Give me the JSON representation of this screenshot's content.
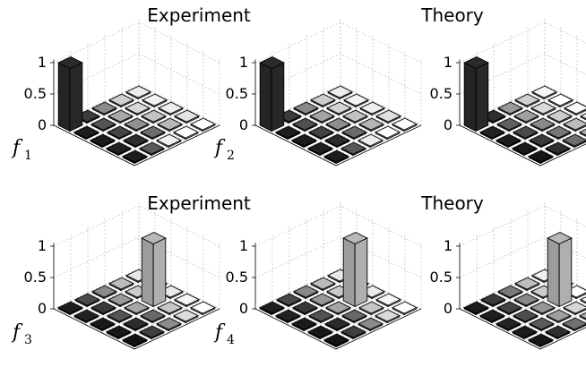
{
  "figure": {
    "titles": [
      "Experiment",
      "Theory",
      "Experiment",
      "Theory"
    ],
    "row_labels": [
      {
        "letter": "f",
        "sub": "1"
      },
      {
        "letter": "f",
        "sub": "2"
      },
      {
        "letter": "f",
        "sub": "3"
      },
      {
        "letter": "f",
        "sub": "4"
      }
    ],
    "z_ticks": [
      "1",
      "0.5",
      "0"
    ]
  },
  "chart_data": [
    {
      "type": "bar3d",
      "title": "Experiment",
      "label": "f1",
      "zlim": [
        0,
        1
      ],
      "grid": true,
      "bars": [
        [
          1.0,
          0.02,
          0.02,
          0.02,
          0.02
        ],
        [
          0.02,
          0.02,
          0.02,
          0.02,
          0.02
        ],
        [
          0.02,
          0.02,
          0.02,
          0.02,
          0.02
        ],
        [
          0.02,
          0.02,
          0.02,
          0.02,
          0.02
        ],
        [
          0.02,
          0.02,
          0.02,
          0.02,
          0.02
        ]
      ],
      "shades": [
        [
          "#2a2a2a",
          "#3c3c3c",
          "#8a8a8a",
          "#cfcfcf",
          "#ececec"
        ],
        [
          "#1e1e1e",
          "#555555",
          "#a8a8a8",
          "#d8d8d8",
          "#f2f2f2"
        ],
        [
          "#1a1a1a",
          "#444444",
          "#909090",
          "#c4c4c4",
          "#eeeeee"
        ],
        [
          "#222222",
          "#2e2e2e",
          "#6c6c6c",
          "#b8b8b8",
          "#e4e4e4"
        ],
        [
          "#1c1c1c",
          "#5a5a5a",
          "#f0f0f0",
          "#ffffff",
          "#ffffff"
        ]
      ]
    },
    {
      "type": "bar3d",
      "title": "",
      "label": "f2",
      "zlim": [
        0,
        1
      ],
      "grid": true,
      "bars": [
        [
          1.0,
          0.02,
          0.02,
          0.02,
          0.02
        ],
        [
          0.02,
          0.02,
          0.02,
          0.02,
          0.02
        ],
        [
          0.02,
          0.02,
          0.02,
          0.02,
          0.02
        ],
        [
          0.02,
          0.02,
          0.02,
          0.02,
          0.02
        ],
        [
          0.02,
          0.02,
          0.02,
          0.02,
          0.02
        ]
      ],
      "shades": [
        [
          "#2a2a2a",
          "#3a3a3a",
          "#888888",
          "#cccccc",
          "#ececec"
        ],
        [
          "#1e1e1e",
          "#505050",
          "#a4a4a4",
          "#d4d4d4",
          "#f4f4f4"
        ],
        [
          "#1a1a1a",
          "#424242",
          "#8e8e8e",
          "#c2c2c2",
          "#eeeeee"
        ],
        [
          "#202020",
          "#2c2c2c",
          "#6a6a6a",
          "#b4b4b4",
          "#e0e0e0"
        ],
        [
          "#1c1c1c",
          "#585858",
          "#eeeeee",
          "#ffffff",
          "#ffffff"
        ]
      ]
    },
    {
      "type": "bar3d",
      "title": "Theory",
      "label": "",
      "zlim": [
        0,
        1
      ],
      "grid": true,
      "bars": [
        [
          1.0,
          0.02,
          0.02,
          0.02,
          0.02
        ],
        [
          0.02,
          0.02,
          0.02,
          0.02,
          0.02
        ],
        [
          0.02,
          0.02,
          0.02,
          0.02,
          0.02
        ],
        [
          0.02,
          0.02,
          0.02,
          0.02,
          0.02
        ],
        [
          0.02,
          0.02,
          0.02,
          0.02,
          0.02
        ]
      ],
      "shades": [
        [
          "#2a2a2a",
          "#2e2e2e",
          "#9a9a9a",
          "#cfcfcf",
          "#f6f6f6"
        ],
        [
          "#222222",
          "#606060",
          "#a0a0a0",
          "#dadada",
          "#ffffff"
        ],
        [
          "#1e1e1e",
          "#4a4a4a",
          "#8a8a8a",
          "#cccccc",
          "#f8f8f8"
        ],
        [
          "#1a1a1a",
          "#3a3a3a",
          "#767676",
          "#bcbcbc",
          "#f0f0f0"
        ],
        [
          "#161616",
          "#303030",
          "#6e6e6e",
          "#b0b0b0",
          "#ececec"
        ]
      ]
    },
    {
      "type": "bar3d",
      "title": "Experiment",
      "label": "f3",
      "zlim": [
        0,
        1
      ],
      "grid": true,
      "bars": [
        [
          0.02,
          0.02,
          0.02,
          0.02,
          0.02
        ],
        [
          0.02,
          0.02,
          0.02,
          0.02,
          0.02
        ],
        [
          0.02,
          0.02,
          0.02,
          1.0,
          0.02
        ],
        [
          0.02,
          0.02,
          0.02,
          0.02,
          0.02
        ],
        [
          0.02,
          0.02,
          0.02,
          0.02,
          0.02
        ]
      ],
      "shades": [
        [
          "#1e1e1e",
          "#4a4a4a",
          "#8a8a8a",
          "#bcbcbc",
          "#e8e8e8"
        ],
        [
          "#222222",
          "#3a3a3a",
          "#9a9a9a",
          "#cccccc",
          "#f0f0f0"
        ],
        [
          "#1a1a1a",
          "#555555",
          "#a8a8a8",
          "#b8b8b8",
          "#ececec"
        ],
        [
          "#181818",
          "#2c2c2c",
          "#6a6a6a",
          "#c8c8c8",
          "#f6f6f6"
        ],
        [
          "#141414",
          "#404040",
          "#8c8c8c",
          "#dcdcdc",
          "#ffffff"
        ]
      ]
    },
    {
      "type": "bar3d",
      "title": "",
      "label": "f4",
      "zlim": [
        0,
        1
      ],
      "grid": true,
      "bars": [
        [
          0.02,
          0.02,
          0.02,
          0.02,
          0.02
        ],
        [
          0.02,
          0.02,
          0.02,
          0.02,
          0.02
        ],
        [
          0.02,
          0.02,
          0.02,
          1.0,
          0.02
        ],
        [
          0.02,
          0.02,
          0.02,
          0.02,
          0.02
        ],
        [
          0.02,
          0.02,
          0.02,
          0.02,
          0.02
        ]
      ],
      "shades": [
        [
          "#1e1e1e",
          "#484848",
          "#888888",
          "#bababa",
          "#e8e8e8"
        ],
        [
          "#222222",
          "#383838",
          "#989898",
          "#cacaca",
          "#f0f0f0"
        ],
        [
          "#1a1a1a",
          "#525252",
          "#a6a6a6",
          "#b8b8b8",
          "#ececec"
        ],
        [
          "#181818",
          "#2a2a2a",
          "#686868",
          "#c6c6c6",
          "#f6f6f6"
        ],
        [
          "#141414",
          "#3e3e3e",
          "#8a8a8a",
          "#dadada",
          "#ffffff"
        ]
      ]
    },
    {
      "type": "bar3d",
      "title": "Theory",
      "label": "",
      "zlim": [
        0,
        1
      ],
      "grid": true,
      "bars": [
        [
          0.02,
          0.02,
          0.02,
          0.02,
          0.02
        ],
        [
          0.02,
          0.02,
          0.02,
          0.02,
          0.02
        ],
        [
          0.02,
          0.02,
          0.02,
          1.0,
          0.02
        ],
        [
          0.02,
          0.02,
          0.02,
          0.02,
          0.02
        ],
        [
          0.02,
          0.02,
          0.02,
          0.02,
          0.02
        ]
      ],
      "shades": [
        [
          "#1a1a1a",
          "#3a3a3a",
          "#7a7a7a",
          "#bcbcbc",
          "#f0f0f0"
        ],
        [
          "#1e1e1e",
          "#444444",
          "#888888",
          "#cccccc",
          "#f8f8f8"
        ],
        [
          "#222222",
          "#4e4e4e",
          "#969696",
          "#b8b8b8",
          "#ffffff"
        ],
        [
          "#1c1c1c",
          "#5a5a5a",
          "#a0a0a0",
          "#d8d8d8",
          "#ffffff"
        ],
        [
          "#161616",
          "#303030",
          "#707070",
          "#b0b0b0",
          "#ececec"
        ]
      ]
    }
  ]
}
